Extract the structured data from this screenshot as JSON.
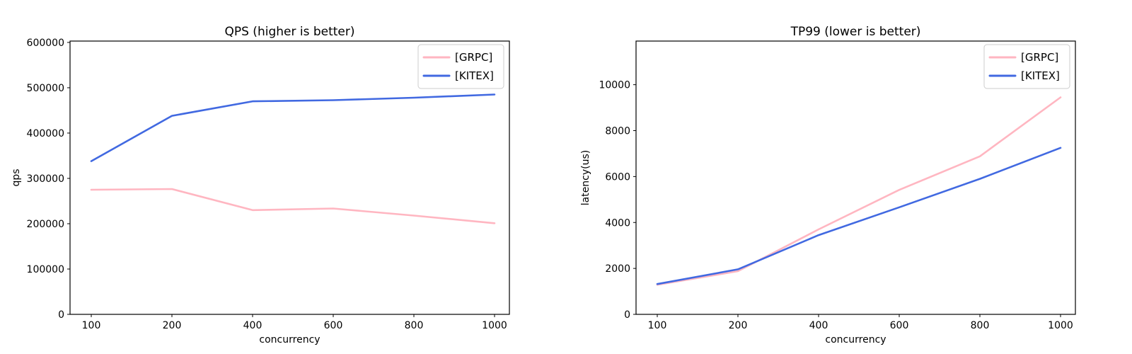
{
  "figure": {
    "background": "#ffffff",
    "text_color": "#000000",
    "spine_color": "#000000",
    "legend_border_color": "#cccccc"
  },
  "chart_data": [
    {
      "type": "line",
      "title": "QPS (higher is better)",
      "xlabel": "concurrency",
      "ylabel": "qps",
      "categories": [
        100,
        200,
        400,
        600,
        800,
        1000
      ],
      "series": [
        {
          "name": "[GRPC]",
          "color": "#ffb6c1",
          "values": [
            275000,
            276500,
            230000,
            233500,
            218000,
            201000
          ]
        },
        {
          "name": "[KITEX]",
          "color": "#4169e1",
          "values": [
            338000,
            438000,
            470000,
            472500,
            478000,
            485000
          ]
        }
      ],
      "ylim": [
        0,
        603000
      ],
      "yticks": [
        0,
        100000,
        200000,
        300000,
        400000,
        500000,
        600000
      ],
      "legend_position": "upper right",
      "grid": false
    },
    {
      "type": "line",
      "title": "TP99 (lower is better)",
      "xlabel": "concurrency",
      "ylabel": "latency(us)",
      "categories": [
        100,
        200,
        400,
        600,
        800,
        1000
      ],
      "series": [
        {
          "name": "[GRPC]",
          "color": "#ffb6c1",
          "values": [
            1290,
            1880,
            3700,
            5420,
            6880,
            9450
          ]
        },
        {
          "name": "[KITEX]",
          "color": "#4169e1",
          "values": [
            1320,
            1960,
            3450,
            4660,
            5900,
            7250
          ]
        }
      ],
      "ylim": [
        0,
        11900
      ],
      "yticks": [
        0,
        2000,
        4000,
        6000,
        8000,
        10000
      ],
      "legend_position": "upper right",
      "grid": false
    }
  ]
}
